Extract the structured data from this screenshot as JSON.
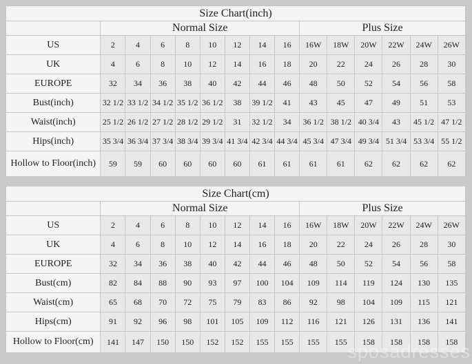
{
  "page": {
    "background": "#c9c9c9",
    "watermark": "sposadresses"
  },
  "colors": {
    "page_gray": "#c9c9c9",
    "table_bg": "#f4f4f4",
    "header_bg": "#f3f3f3",
    "value_cell_bg": "#e8e8e8",
    "border": "#c6c6c6",
    "text": "#1e1e1e"
  },
  "chart_data": [
    {
      "type": "table",
      "title": "Size Chart(inch)",
      "column_groups": [
        {
          "label": "Normal Size",
          "span": 8
        },
        {
          "label": "Plus Size",
          "span": 6
        }
      ],
      "size_columns": [
        "2",
        "4",
        "6",
        "8",
        "10",
        "12",
        "14",
        "16",
        "16W",
        "18W",
        "20W",
        "22W",
        "24W",
        "26W"
      ],
      "rows": [
        {
          "label": "US",
          "values": [
            "2",
            "4",
            "6",
            "8",
            "10",
            "12",
            "14",
            "16",
            "16W",
            "18W",
            "20W",
            "22W",
            "24W",
            "26W"
          ]
        },
        {
          "label": "UK",
          "values": [
            "4",
            "6",
            "8",
            "10",
            "12",
            "14",
            "16",
            "18",
            "20",
            "22",
            "24",
            "26",
            "28",
            "30"
          ]
        },
        {
          "label": "EUROPE",
          "values": [
            "32",
            "34",
            "36",
            "38",
            "40",
            "42",
            "44",
            "46",
            "48",
            "50",
            "52",
            "54",
            "56",
            "58"
          ]
        },
        {
          "label": "Bust(inch)",
          "values": [
            "32 1/2",
            "33 1/2",
            "34 1/2",
            "35 1/2",
            "36 1/2",
            "38",
            "39 1/2",
            "41",
            "43",
            "45",
            "47",
            "49",
            "51",
            "53"
          ]
        },
        {
          "label": "Waist(inch)",
          "values": [
            "25 1/2",
            "26 1/2",
            "27 1/2",
            "28 1/2",
            "29 1/2",
            "31",
            "32 1/2",
            "34",
            "36 1/2",
            "38 1/2",
            "40 3/4",
            "43",
            "45 1/2",
            "47 1/2"
          ]
        },
        {
          "label": "Hips(inch)",
          "values": [
            "35 3/4",
            "36 3/4",
            "37 3/4",
            "38 3/4",
            "39 3/4",
            "41 3/4",
            "42 3/4",
            "44 3/4",
            "45 3/4",
            "47 3/4",
            "49 3/4",
            "51 3/4",
            "53 3/4",
            "55 1/2"
          ]
        },
        {
          "label": "Hollow to Floor(inch)",
          "values": [
            "59",
            "59",
            "60",
            "60",
            "60",
            "60",
            "61",
            "61",
            "61",
            "61",
            "62",
            "62",
            "62",
            "62"
          ]
        }
      ]
    },
    {
      "type": "table",
      "title": "Size Chart(cm)",
      "column_groups": [
        {
          "label": "Normal Size",
          "span": 8
        },
        {
          "label": "Plus Size",
          "span": 6
        }
      ],
      "size_columns": [
        "2",
        "4",
        "6",
        "8",
        "10",
        "12",
        "14",
        "16",
        "16W",
        "18W",
        "20W",
        "22W",
        "24W",
        "26W"
      ],
      "rows": [
        {
          "label": "US",
          "values": [
            "2",
            "4",
            "6",
            "8",
            "10",
            "12",
            "14",
            "16",
            "16W",
            "18W",
            "20W",
            "22W",
            "24W",
            "26W"
          ]
        },
        {
          "label": "UK",
          "values": [
            "4",
            "6",
            "8",
            "10",
            "12",
            "14",
            "16",
            "18",
            "20",
            "22",
            "24",
            "26",
            "28",
            "30"
          ]
        },
        {
          "label": "EUROPE",
          "values": [
            "32",
            "34",
            "36",
            "38",
            "40",
            "42",
            "44",
            "46",
            "48",
            "50",
            "52",
            "54",
            "56",
            "58"
          ]
        },
        {
          "label": "Bust(cm)",
          "values": [
            "82",
            "84",
            "88",
            "90",
            "93",
            "97",
            "100",
            "104",
            "109",
            "114",
            "119",
            "124",
            "130",
            "135"
          ]
        },
        {
          "label": "Waist(cm)",
          "values": [
            "65",
            "68",
            "70",
            "72",
            "75",
            "79",
            "83",
            "86",
            "92",
            "98",
            "104",
            "109",
            "115",
            "121"
          ]
        },
        {
          "label": "Hips(cm)",
          "values": [
            "91",
            "92",
            "96",
            "98",
            "101",
            "105",
            "109",
            "112",
            "116",
            "121",
            "126",
            "131",
            "136",
            "141"
          ]
        },
        {
          "label": "Hollow to Floor(cm)",
          "values": [
            "141",
            "147",
            "150",
            "150",
            "152",
            "152",
            "155",
            "155",
            "155",
            "155",
            "158",
            "158",
            "158",
            "158"
          ]
        }
      ]
    }
  ]
}
